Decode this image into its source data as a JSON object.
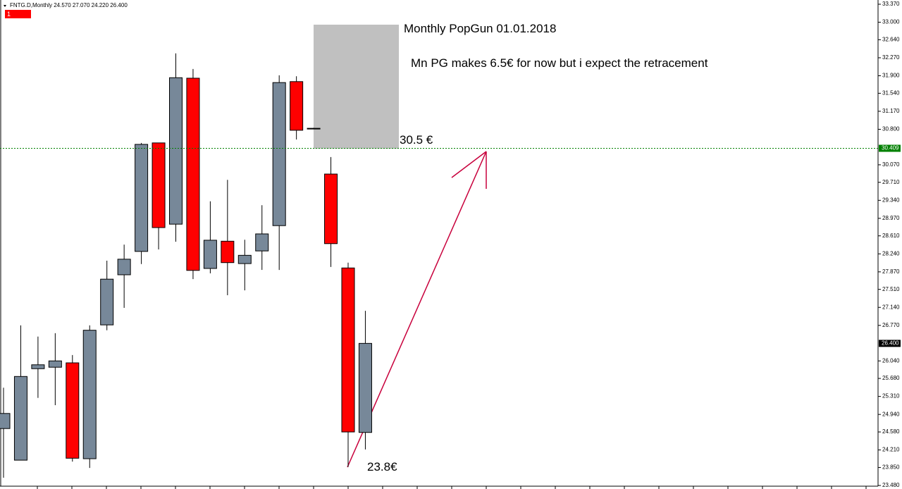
{
  "chart_data": {
    "type": "candlestick",
    "header": "FNTG.D,Monthly  24.570 27.070 24.220 26.400",
    "indicator": "1",
    "up_color": "#778899",
    "down_color": "#ff0000",
    "open": [
      24.65,
      24.0,
      25.88,
      25.91,
      26.0,
      24.03,
      26.78,
      27.81,
      28.29,
      30.52,
      28.85,
      31.85,
      27.94,
      28.5,
      28.04,
      28.3,
      28.82,
      31.78,
      30.82,
      29.88,
      27.95,
      24.57
    ],
    "high": [
      25.49,
      26.77,
      26.54,
      26.61,
      26.16,
      26.77,
      28.1,
      28.43,
      30.52,
      30.52,
      32.36,
      32.04,
      29.32,
      29.76,
      28.53,
      29.24,
      31.91,
      31.89,
      30.83,
      30.23,
      28.06,
      27.07
    ],
    "low": [
      23.64,
      24.0,
      25.28,
      25.13,
      23.97,
      23.84,
      26.67,
      27.13,
      28.03,
      28.33,
      28.49,
      27.72,
      27.84,
      27.39,
      27.49,
      27.91,
      27.91,
      30.59,
      30.8,
      27.97,
      23.86,
      24.22
    ],
    "close": [
      24.96,
      25.72,
      25.96,
      26.04,
      24.04,
      26.67,
      27.72,
      28.13,
      30.49,
      28.78,
      31.86,
      27.9,
      28.52,
      28.06,
      28.21,
      28.65,
      31.76,
      30.78,
      30.81,
      28.45,
      24.58,
      26.4
    ],
    "ylim": [
      23.48,
      33.37
    ],
    "yticks": [
      {
        "value": 23.48,
        "label": "23.480"
      },
      {
        "value": 23.85,
        "label": "23.850"
      },
      {
        "value": 24.21,
        "label": "24.210"
      },
      {
        "value": 24.58,
        "label": "24.580"
      },
      {
        "value": 24.94,
        "label": "24.940"
      },
      {
        "value": 25.31,
        "label": "25.310"
      },
      {
        "value": 25.68,
        "label": "25.680"
      },
      {
        "value": 26.04,
        "label": "26.040"
      },
      {
        "value": 26.77,
        "label": "26.770"
      },
      {
        "value": 27.14,
        "label": "27.140"
      },
      {
        "value": 27.51,
        "label": "27.510"
      },
      {
        "value": 27.87,
        "label": "27.870"
      },
      {
        "value": 28.24,
        "label": "28.240"
      },
      {
        "value": 28.61,
        "label": "28.610"
      },
      {
        "value": 28.97,
        "label": "28.970"
      },
      {
        "value": 29.34,
        "label": "29.340"
      },
      {
        "value": 29.71,
        "label": "29.710"
      },
      {
        "value": 30.07,
        "label": "30.070"
      },
      {
        "value": 30.8,
        "label": "30.800"
      },
      {
        "value": 31.17,
        "label": "31.170"
      },
      {
        "value": 31.54,
        "label": "31.540"
      },
      {
        "value": 31.9,
        "label": "31.900"
      },
      {
        "value": 32.27,
        "label": "32.270"
      },
      {
        "value": 32.64,
        "label": "32.640"
      },
      {
        "value": 33.0,
        "label": "33.000"
      },
      {
        "value": 33.37,
        "label": "33.370"
      }
    ],
    "price_lines": [
      {
        "value": 30.409,
        "label": "30.409",
        "color": "#008000",
        "line": true
      },
      {
        "value": 26.4,
        "label": "26.400",
        "color": "#000000",
        "line": false
      }
    ],
    "annotations": [
      "Monthly PopGun 01.01.2018",
      "Mn PG makes 6.5€ for now but i expect the retracement",
      "30.5 €",
      "23.8€"
    ]
  }
}
